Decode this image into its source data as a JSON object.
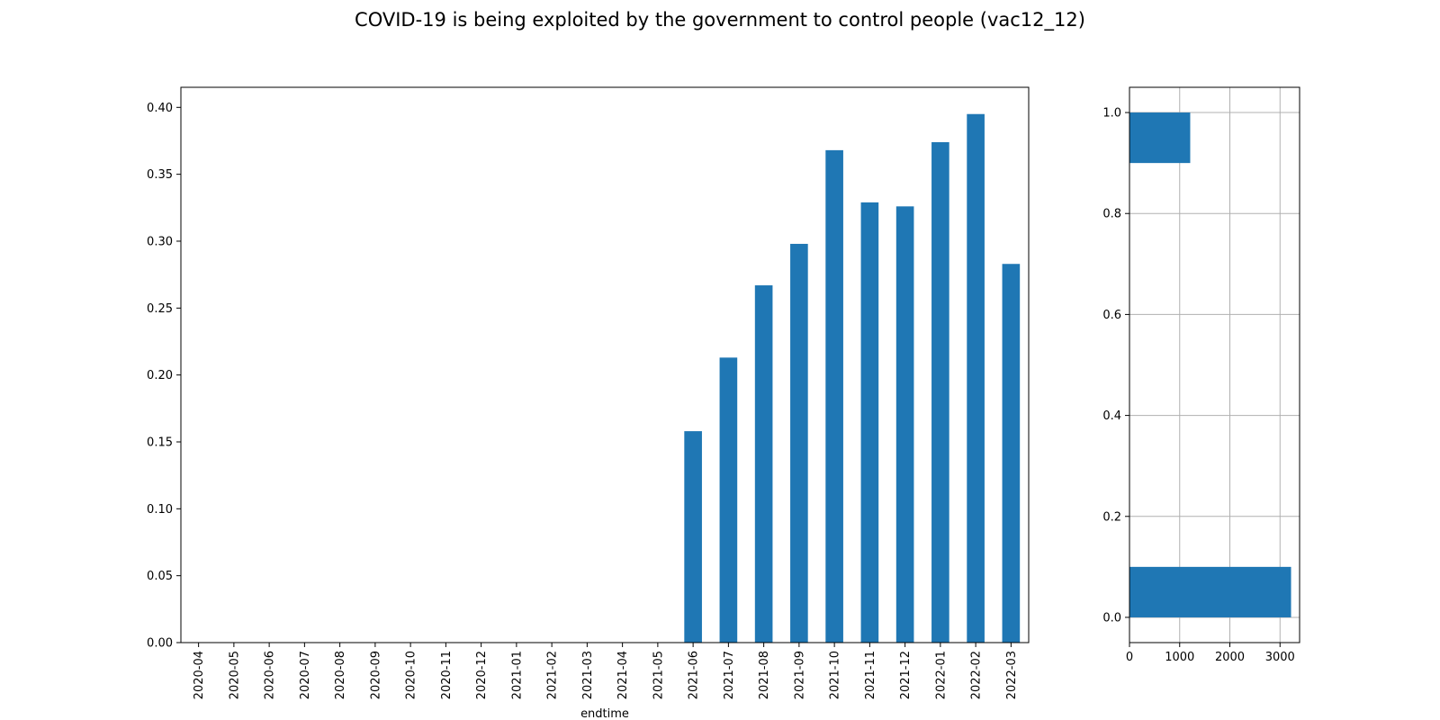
{
  "title": "COVID-19 is being exploited by the government to control people (vac12_12)",
  "chart_data": [
    {
      "type": "bar",
      "title": "",
      "xlabel": "endtime",
      "ylabel": "",
      "categories": [
        "2020-04",
        "2020-05",
        "2020-06",
        "2020-07",
        "2020-08",
        "2020-09",
        "2020-10",
        "2020-11",
        "2020-12",
        "2021-01",
        "2021-02",
        "2021-03",
        "2021-04",
        "2021-05",
        "2021-06",
        "2021-07",
        "2021-08",
        "2021-09",
        "2021-10",
        "2021-11",
        "2021-12",
        "2022-01",
        "2022-02",
        "2022-03"
      ],
      "values": [
        0,
        0,
        0,
        0,
        0,
        0,
        0,
        0,
        0,
        0,
        0,
        0,
        0,
        0,
        0.158,
        0.213,
        0.267,
        0.298,
        0.368,
        0.329,
        0.326,
        0.374,
        0.395,
        0.283
      ],
      "ylim": [
        0,
        0.415
      ],
      "yticks": [
        "0.00",
        "0.05",
        "0.10",
        "0.15",
        "0.20",
        "0.25",
        "0.30",
        "0.35",
        "0.40"
      ],
      "grid": false,
      "color": "#1f77b4"
    },
    {
      "type": "bar",
      "orientation": "horizontal",
      "title": "",
      "xlabel": "",
      "ylabel": "",
      "categories": [
        0.0,
        1.0
      ],
      "values": [
        3220,
        1210
      ],
      "xlim": [
        0,
        3390
      ],
      "ylim": [
        -0.05,
        1.05
      ],
      "xticks": [
        "0",
        "1000",
        "2000",
        "3000"
      ],
      "yticks": [
        "0.0",
        "0.2",
        "0.4",
        "0.6",
        "0.8",
        "1.0"
      ],
      "grid": true,
      "color": "#1f77b4"
    }
  ]
}
